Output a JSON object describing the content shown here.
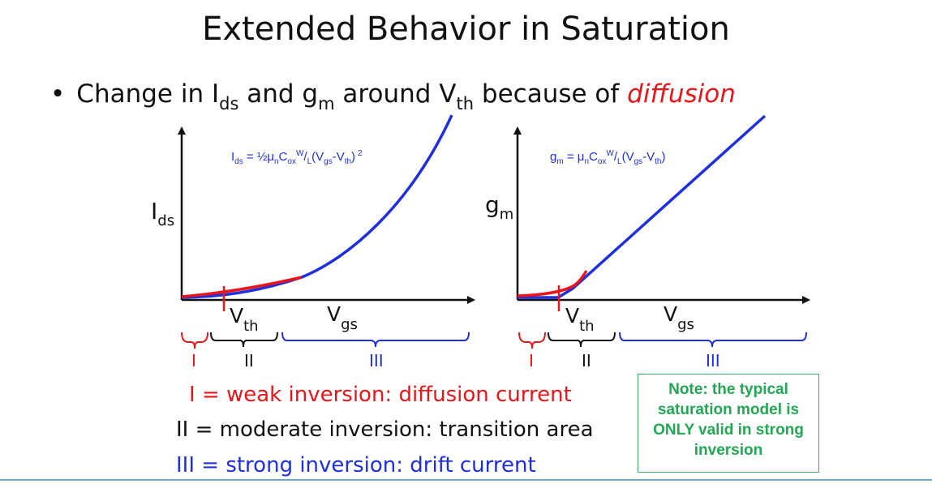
{
  "slide": {
    "title": "Extended Behavior in Saturation",
    "bullet": {
      "prefix": "Change in I",
      "ids_sub": "ds",
      "and": " and g",
      "gm_sub": "m",
      "around": " around V",
      "vth_sub": "th",
      "because": " because of ",
      "emphasis": "diffusion"
    }
  },
  "left_plot": {
    "y_label": "I",
    "y_label_sub": "ds",
    "equation_text": "I",
    "equation_parts": {
      "a": "I",
      "a_sub": "ds",
      "b": " = ½μ",
      "b_sub": "n",
      "c": "C",
      "c_sub": "ox",
      "d_sup": "W",
      "e": "/",
      "e_sub": "L",
      "f": "(V",
      "f_sub": "gs",
      "g": "-V",
      "g_sub": "th",
      "h": ")",
      "h_sup": "2"
    },
    "vth_label": "V",
    "vth_sub": "th",
    "vgs_label": "V",
    "vgs_sub": "gs",
    "regions": [
      "I",
      "II",
      "III"
    ]
  },
  "right_plot": {
    "y_label": "g",
    "y_label_sub": "m",
    "equation_parts": {
      "a": "g",
      "a_sub": "m",
      "b": " = μ",
      "b_sub": "n",
      "c": "C",
      "c_sub": "ox",
      "d_sup": "W",
      "e": "/",
      "e_sub": "L",
      "f": "(V",
      "f_sub": "gs",
      "g": "-V",
      "g_sub": "th",
      "h": ")"
    },
    "vth_label": "V",
    "vth_sub": "th",
    "vgs_label": "V",
    "vgs_sub": "gs",
    "regions": [
      "I",
      "II",
      "III"
    ]
  },
  "legend": {
    "weak": "I = weak inversion: diffusion current",
    "moderate": "II = moderate inversion: transition area",
    "strong": "III = strong inversion: drift current"
  },
  "note": "Note: the typical saturation model is ONLY valid in strong inversion",
  "colors": {
    "red": "#e8161b",
    "blue": "#1f2fdc",
    "black": "#111111",
    "green": "#22a853",
    "rule": "#6fa0d2"
  }
}
